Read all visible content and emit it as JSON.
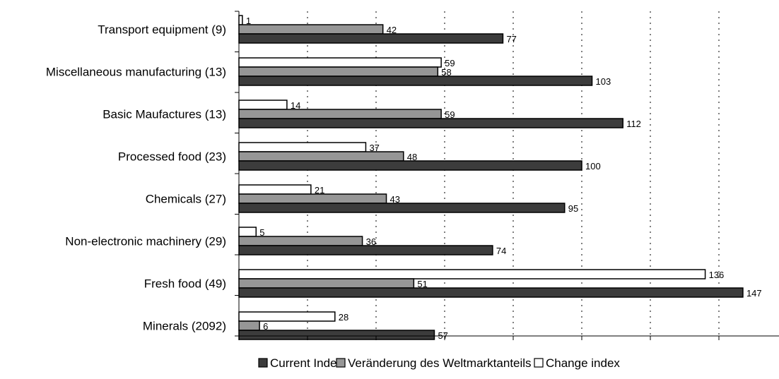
{
  "chart_data": {
    "type": "bar",
    "orientation": "horizontal",
    "categories": [
      "Transport equipment (9)",
      "Miscellaneous manufacturing (13)",
      "Basic Maufactures (13)",
      "Processed food (23)",
      "Chemicals (27)",
      "Non-electronic machinery (29)",
      "Fresh food (49)",
      "Minerals (2092)"
    ],
    "series": [
      {
        "name": "Change index",
        "color": "#ffffff",
        "values": [
          1,
          59,
          14,
          37,
          21,
          5,
          136,
          28
        ]
      },
      {
        "name": "Veränderung des Weltmarktanteils",
        "color": "#969696",
        "values": [
          42,
          58,
          59,
          48,
          43,
          36,
          51,
          6
        ]
      },
      {
        "name": "Current Index",
        "color": "#3c3c3c",
        "values": [
          77,
          103,
          112,
          100,
          95,
          74,
          147,
          57
        ]
      }
    ],
    "legend_order": [
      "Current Index",
      "Veränderung des Weltmarktanteils",
      "Change index"
    ],
    "xlim": [
      0,
      160
    ],
    "x_tick_step": 20,
    "grid": "vertical-dotted",
    "legend_position": "bottom",
    "xlabel": "",
    "ylabel": "",
    "title": ""
  }
}
